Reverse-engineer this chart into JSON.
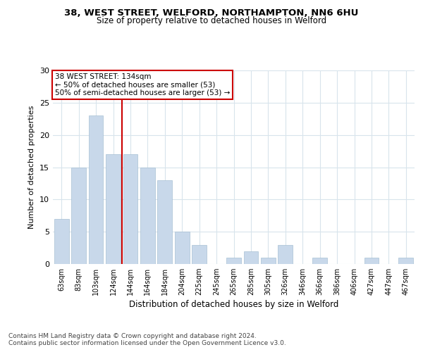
{
  "title1": "38, WEST STREET, WELFORD, NORTHAMPTON, NN6 6HU",
  "title2": "Size of property relative to detached houses in Welford",
  "xlabel": "Distribution of detached houses by size in Welford",
  "ylabel": "Number of detached properties",
  "categories": [
    "63sqm",
    "83sqm",
    "103sqm",
    "124sqm",
    "144sqm",
    "164sqm",
    "184sqm",
    "204sqm",
    "225sqm",
    "245sqm",
    "265sqm",
    "285sqm",
    "305sqm",
    "326sqm",
    "346sqm",
    "366sqm",
    "386sqm",
    "406sqm",
    "427sqm",
    "447sqm",
    "467sqm"
  ],
  "values": [
    7,
    15,
    23,
    17,
    17,
    15,
    13,
    5,
    3,
    0,
    1,
    2,
    1,
    3,
    0,
    1,
    0,
    0,
    1,
    0,
    1
  ],
  "bar_color": "#c8d8ea",
  "bar_edge_color": "#a8c0d4",
  "grid_color": "#d8e4ec",
  "background_color": "#ffffff",
  "annotation_line1": "38 WEST STREET: 134sqm",
  "annotation_line2": "← 50% of detached houses are smaller (53)",
  "annotation_line3": "50% of semi-detached houses are larger (53) →",
  "annotation_box_color": "#cc0000",
  "vline_x_index": 3.5,
  "vline_color": "#cc0000",
  "ylim": [
    0,
    30
  ],
  "yticks": [
    0,
    5,
    10,
    15,
    20,
    25,
    30
  ],
  "footer1": "Contains HM Land Registry data © Crown copyright and database right 2024.",
  "footer2": "Contains public sector information licensed under the Open Government Licence v3.0."
}
